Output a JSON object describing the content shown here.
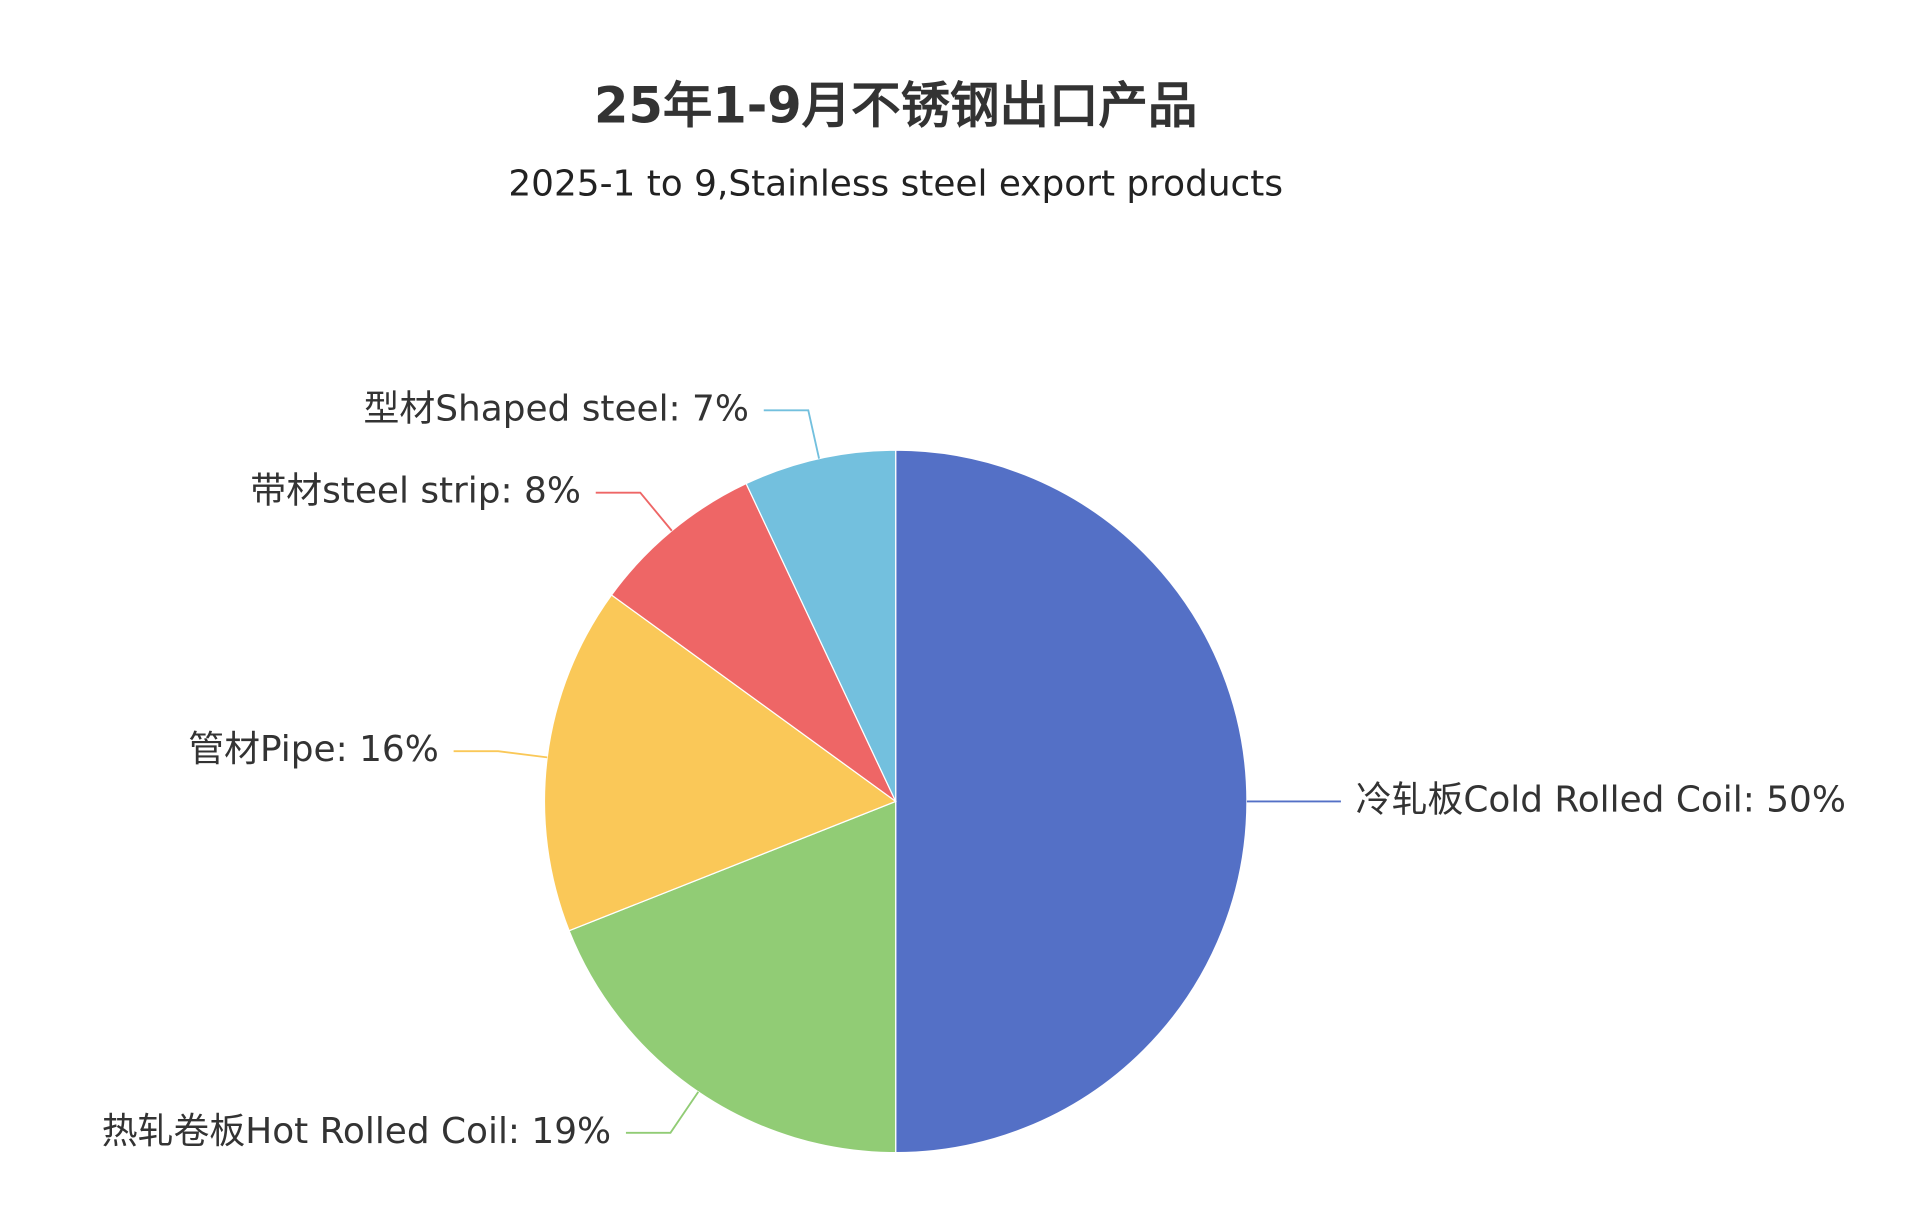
{
  "chart_data": {
    "type": "pie",
    "title": "25年1-9月不锈钢出口产品",
    "subtitle": "2025-1 to 9,Stainless steel export products",
    "labels": [
      "冷轧板Cold Rolled Coil: 50%",
      "热轧卷板Hot Rolled Coil: 19%",
      "管材Pipe: 16%",
      "带材steel strip: 8%",
      "型材Shaped steel: 7%"
    ],
    "values": [
      50,
      19,
      16,
      8,
      7
    ],
    "colors": [
      "#5470c6",
      "#91cc75",
      "#fac858",
      "#ee6666",
      "#73c0de"
    ]
  }
}
